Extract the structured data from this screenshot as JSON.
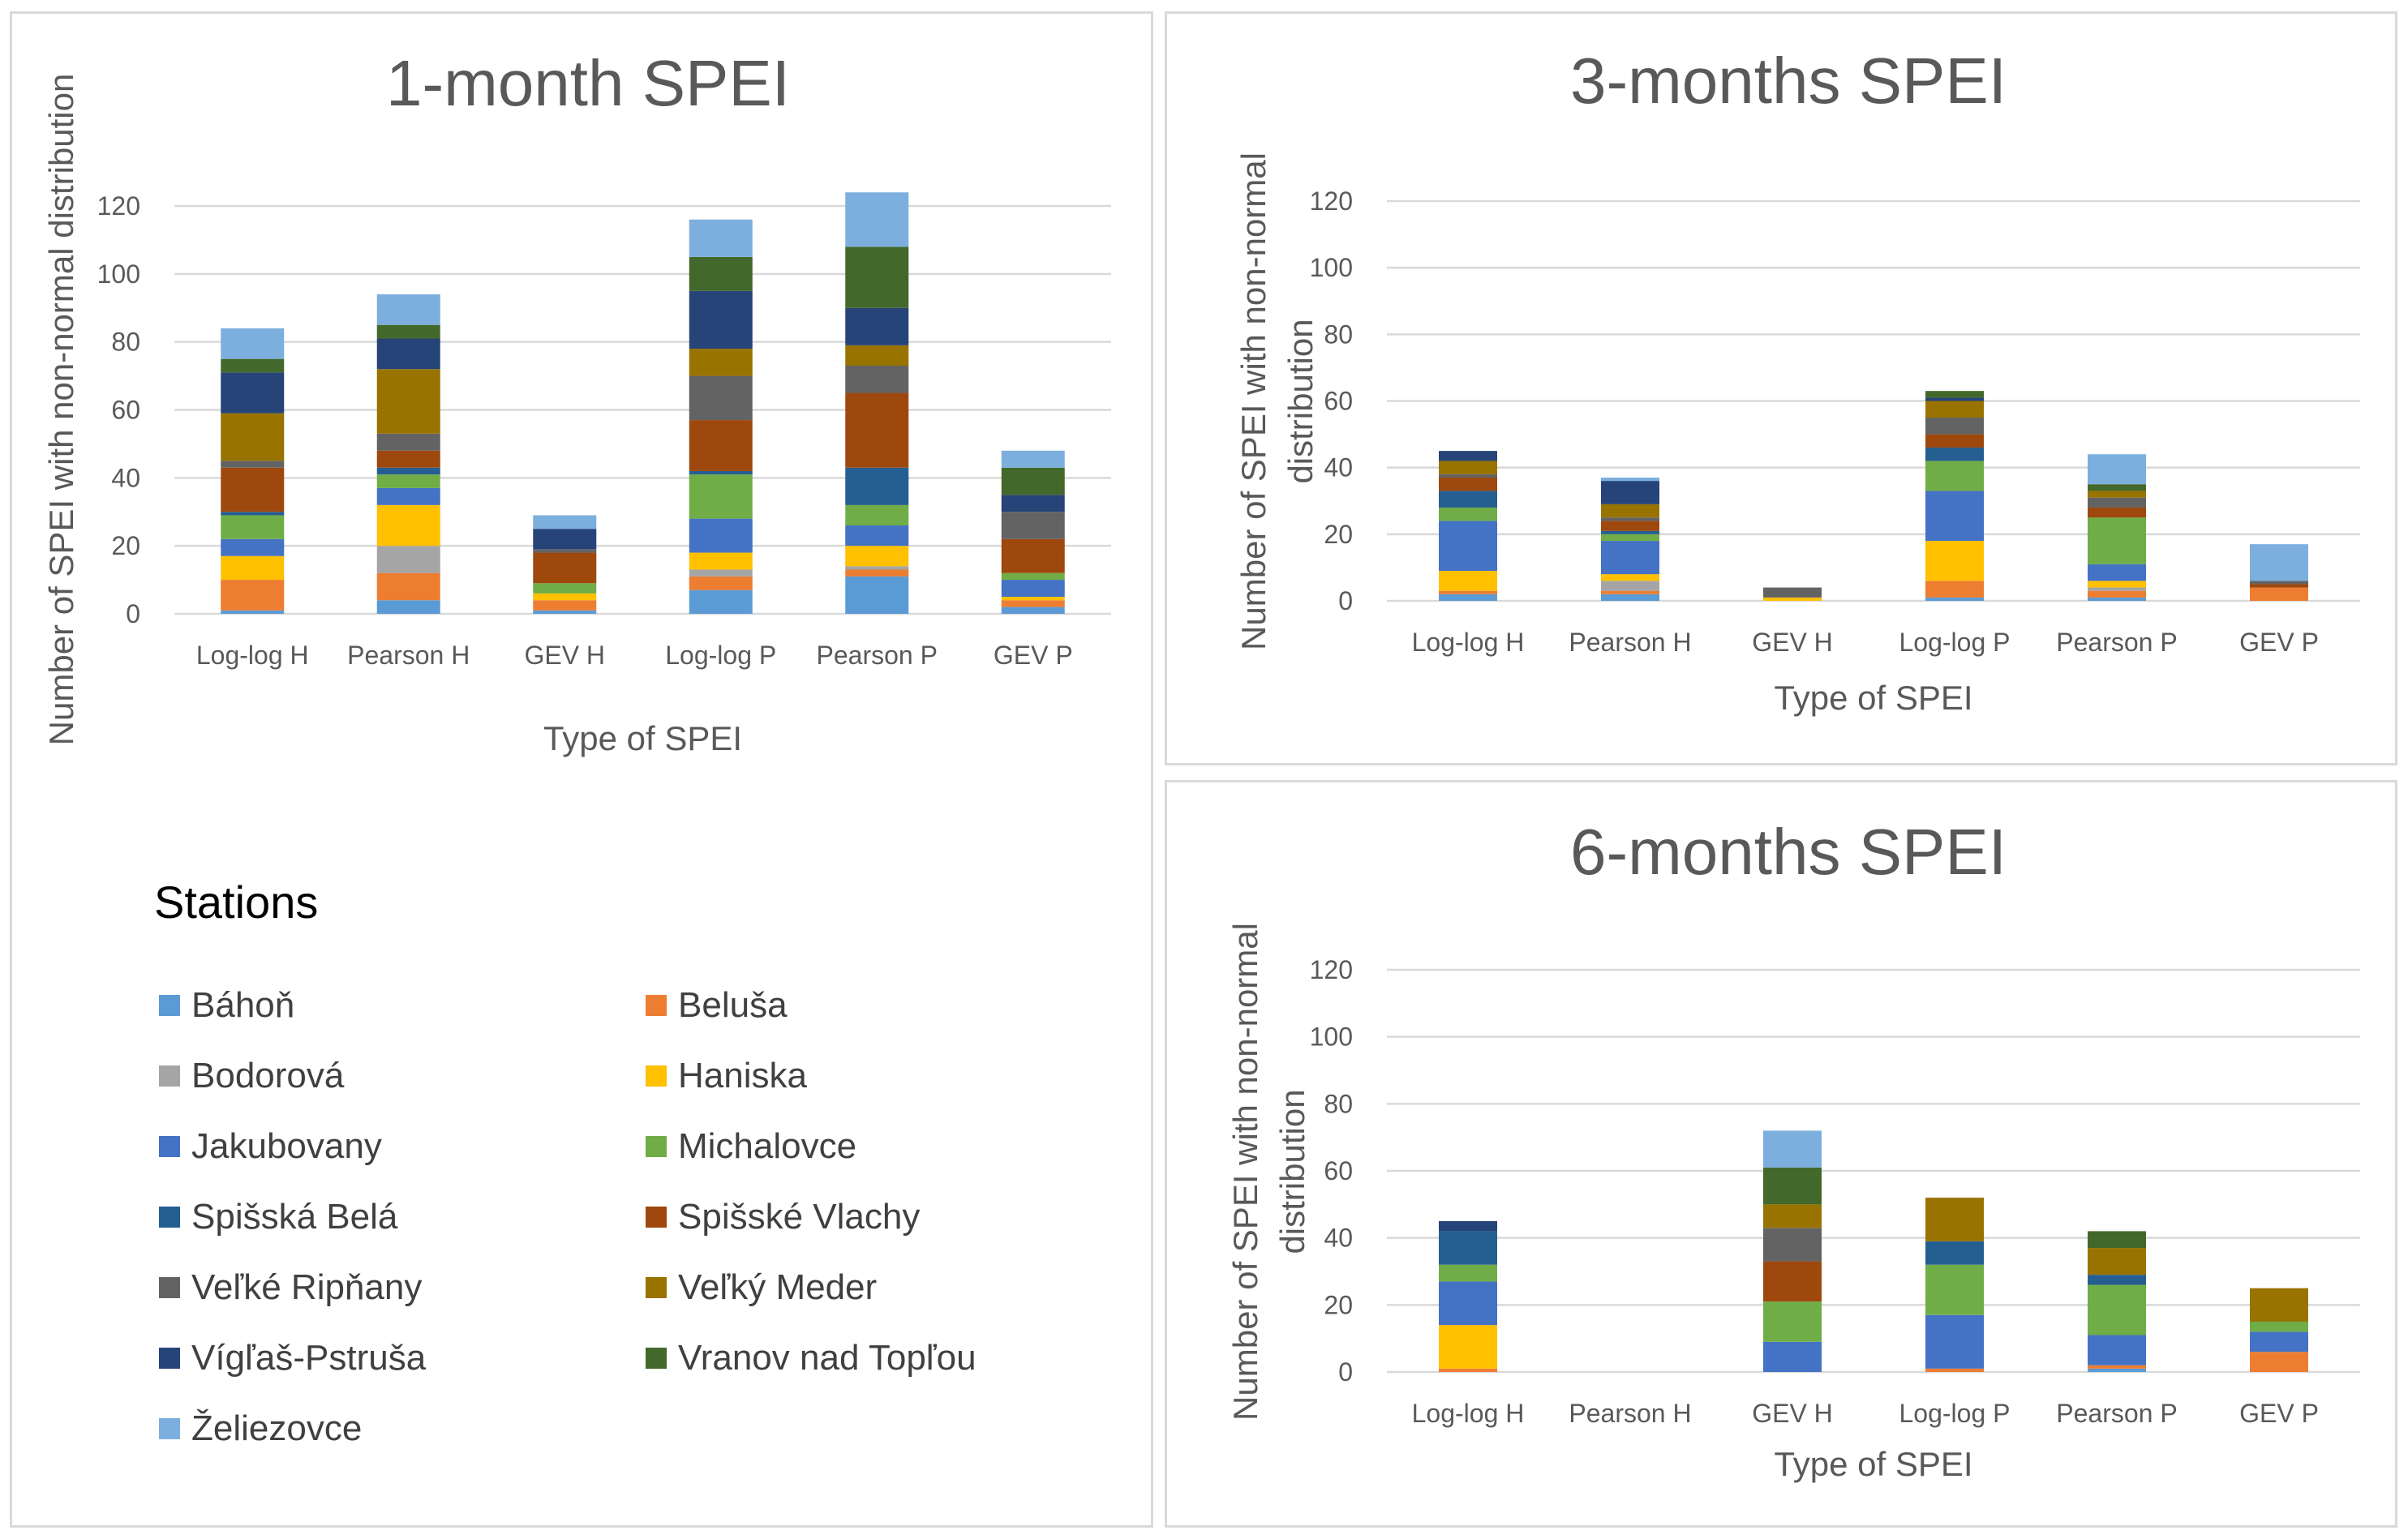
{
  "colors": {
    "Báhoň": "#5b9bd5",
    "Beluša": "#ed7d31",
    "Bodorová": "#a5a5a5",
    "Haniska": "#ffc000",
    "Jakubovany": "#4472c4",
    "Michalovce": "#70ad47",
    "Spišská Belá": "#255e91",
    "Spišské Vlachy": "#9e480e",
    "Veľké Ripňany": "#636363",
    "Veľký Meder": "#997300",
    "Vígľaš-Pstruša": "#264478",
    "Vranov nad Topľou": "#43682b",
    "Želiezovce": "#7cafdd"
  },
  "legend": {
    "title": "Stations",
    "items": [
      "Báhoň",
      "Beluša",
      "Bodorová",
      "Haniska",
      "Jakubovany",
      "Michalovce",
      "Spišská Belá",
      "Spišské Vlachy",
      "Veľké Ripňany",
      "Veľký Meder",
      "Vígľaš-Pstruša",
      "Vranov nad Topľou",
      "Želiezovce"
    ]
  },
  "chart_data": [
    {
      "type": "bar",
      "stacked": true,
      "title": "1-month SPEI",
      "xlabel": "Type of SPEI",
      "ylabel": "Number of SPEI with  non-normal distribution",
      "categories": [
        "Log-log H",
        "Pearson H",
        "GEV H",
        "Log-log P",
        "Pearson P",
        "GEV P"
      ],
      "ylim": [
        0,
        120
      ],
      "yticks": [
        "0",
        "20",
        "40",
        "60",
        "80",
        "100",
        "120"
      ],
      "series": [
        {
          "name": "Báhoň",
          "values": [
            1,
            4,
            1,
            7,
            11,
            2
          ]
        },
        {
          "name": "Beluša",
          "values": [
            9,
            8,
            3,
            4,
            2,
            2
          ]
        },
        {
          "name": "Bodorová",
          "values": [
            0,
            8,
            0,
            2,
            1,
            0
          ]
        },
        {
          "name": "Haniska",
          "values": [
            7,
            12,
            2,
            5,
            6,
            1
          ]
        },
        {
          "name": "Jakubovany",
          "values": [
            5,
            5,
            0,
            10,
            6,
            5
          ]
        },
        {
          "name": "Michalovce",
          "values": [
            7,
            4,
            3,
            13,
            6,
            2
          ]
        },
        {
          "name": "Spišská Belá",
          "values": [
            1,
            2,
            0,
            1,
            11,
            0
          ]
        },
        {
          "name": "Spišské Vlachy",
          "values": [
            13,
            5,
            9,
            15,
            22,
            10
          ]
        },
        {
          "name": "Veľké Ripňany",
          "values": [
            2,
            5,
            1,
            13,
            8,
            8
          ]
        },
        {
          "name": "Veľký Meder",
          "values": [
            14,
            19,
            0,
            8,
            6,
            0
          ]
        },
        {
          "name": "Vígľaš-Pstruša",
          "values": [
            12,
            9,
            6,
            17,
            11,
            5
          ]
        },
        {
          "name": "Vranov nad Topľou",
          "values": [
            4,
            4,
            0,
            10,
            18,
            8
          ]
        },
        {
          "name": "Želiezovce",
          "values": [
            9,
            9,
            4,
            11,
            16,
            5
          ]
        }
      ]
    },
    {
      "type": "bar",
      "stacked": true,
      "title": "3-months SPEI",
      "xlabel": "Type of SPEI",
      "ylabel": "Number of SPEI with  non-normal distribution",
      "categories": [
        "Log-log H",
        "Pearson H",
        "GEV H",
        "Log-log P",
        "Pearson P",
        "GEV P"
      ],
      "ylim": [
        0,
        120
      ],
      "yticks": [
        "0",
        "20",
        "40",
        "60",
        "80",
        "100",
        "120"
      ],
      "series": [
        {
          "name": "Báhoň",
          "values": [
            2,
            2,
            0,
            1,
            1,
            0
          ]
        },
        {
          "name": "Beluša",
          "values": [
            1,
            1,
            0,
            5,
            2,
            4
          ]
        },
        {
          "name": "Bodorová",
          "values": [
            0,
            3,
            0,
            0,
            1,
            0
          ]
        },
        {
          "name": "Haniska",
          "values": [
            6,
            2,
            1,
            12,
            2,
            0
          ]
        },
        {
          "name": "Jakubovany",
          "values": [
            15,
            10,
            0,
            15,
            5,
            0
          ]
        },
        {
          "name": "Michalovce",
          "values": [
            4,
            2,
            0,
            9,
            14,
            0
          ]
        },
        {
          "name": "Spišská Belá",
          "values": [
            5,
            1,
            0,
            4,
            0,
            0
          ]
        },
        {
          "name": "Spišské Vlachy",
          "values": [
            4,
            3,
            0,
            4,
            3,
            1
          ]
        },
        {
          "name": "Veľké Ripňany",
          "values": [
            1,
            1,
            3,
            5,
            3,
            1
          ]
        },
        {
          "name": "Veľký Meder",
          "values": [
            4,
            4,
            0,
            5,
            2,
            0
          ]
        },
        {
          "name": "Vígľaš-Pstruša",
          "values": [
            3,
            7,
            0,
            1,
            0,
            0
          ]
        },
        {
          "name": "Vranov nad Topľou",
          "values": [
            0,
            0,
            0,
            2,
            2,
            0
          ]
        },
        {
          "name": "Želiezovce",
          "values": [
            0,
            1,
            0,
            0,
            9,
            11
          ]
        }
      ]
    },
    {
      "type": "bar",
      "stacked": true,
      "title": "6-months SPEI",
      "xlabel": "Type of SPEI",
      "ylabel": "Number of SPEI with  non-normal distribution",
      "categories": [
        "Log-log H",
        "Pearson H",
        "GEV H",
        "Log-log P",
        "Pearson P",
        "GEV P"
      ],
      "ylim": [
        0,
        120
      ],
      "yticks": [
        "0",
        "20",
        "40",
        "60",
        "80",
        "100",
        "120"
      ],
      "series": [
        {
          "name": "Báhoň",
          "values": [
            0,
            0,
            0,
            0,
            1,
            0
          ]
        },
        {
          "name": "Beluša",
          "values": [
            1,
            0,
            0,
            1,
            1,
            6
          ]
        },
        {
          "name": "Bodorová",
          "values": [
            0,
            0,
            0,
            0,
            0,
            0
          ]
        },
        {
          "name": "Haniska",
          "values": [
            13,
            0,
            0,
            0,
            0,
            0
          ]
        },
        {
          "name": "Jakubovany",
          "values": [
            13,
            0,
            9,
            16,
            9,
            6
          ]
        },
        {
          "name": "Michalovce",
          "values": [
            5,
            0,
            12,
            15,
            15,
            3
          ]
        },
        {
          "name": "Spišská Belá",
          "values": [
            10,
            0,
            0,
            7,
            3,
            0
          ]
        },
        {
          "name": "Spišské Vlachy",
          "values": [
            0,
            0,
            12,
            0,
            0,
            0
          ]
        },
        {
          "name": "Veľké Ripňany",
          "values": [
            0,
            0,
            10,
            0,
            0,
            0
          ]
        },
        {
          "name": "Veľký Meder",
          "values": [
            0,
            0,
            7,
            13,
            8,
            10
          ]
        },
        {
          "name": "Vígľaš-Pstruša",
          "values": [
            3,
            0,
            0,
            0,
            0,
            0
          ]
        },
        {
          "name": "Vranov nad Topľou",
          "values": [
            0,
            0,
            11,
            0,
            5,
            0
          ]
        },
        {
          "name": "Želiezovce",
          "values": [
            0,
            0,
            11,
            0,
            0,
            0
          ]
        }
      ]
    }
  ]
}
